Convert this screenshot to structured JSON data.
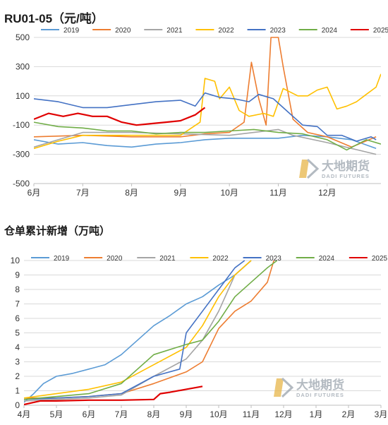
{
  "watermark": {
    "name": "大地期货",
    "sub": "DADI FUTURES"
  },
  "chart_data": [
    {
      "type": "line",
      "title": "RU01-05（元/吨）",
      "xlabel": "",
      "ylabel": "",
      "categories": [
        "6月",
        "7月",
        "8月",
        "9月",
        "10月",
        "11月",
        "12月"
      ],
      "x_range": [
        0,
        7.1
      ],
      "ylim": [
        -500,
        500
      ],
      "yticks": [
        500,
        300,
        100,
        -100,
        -300,
        -500
      ],
      "grid": "horizontal",
      "legend": "top",
      "series": [
        {
          "name": "2019",
          "color": "#5b9bd5",
          "points": [
            [
              0,
              -200
            ],
            [
              0.5,
              -230
            ],
            [
              1,
              -220
            ],
            [
              1.5,
              -240
            ],
            [
              2,
              -250
            ],
            [
              2.5,
              -230
            ],
            [
              3,
              -220
            ],
            [
              3.5,
              -200
            ],
            [
              4,
              -190
            ],
            [
              4.5,
              -190
            ],
            [
              5,
              -190
            ],
            [
              5.5,
              -170
            ],
            [
              6,
              -180
            ],
            [
              6.5,
              -200
            ],
            [
              7,
              -260
            ]
          ]
        },
        {
          "name": "2020",
          "color": "#ed7d31",
          "points": [
            [
              0,
              -180
            ],
            [
              1,
              -170
            ],
            [
              2,
              -180
            ],
            [
              3,
              -180
            ],
            [
              3.5,
              -160
            ],
            [
              4,
              -150
            ],
            [
              4.3,
              -80
            ],
            [
              4.45,
              330
            ],
            [
              4.6,
              80
            ],
            [
              4.75,
              -100
            ],
            [
              4.85,
              500
            ],
            [
              5.0,
              500
            ],
            [
              5.1,
              300
            ],
            [
              5.3,
              -60
            ],
            [
              5.6,
              -150
            ],
            [
              6,
              -180
            ],
            [
              6.5,
              -250
            ],
            [
              7,
              -180
            ]
          ]
        },
        {
          "name": "2021",
          "color": "#a5a5a5",
          "points": [
            [
              0,
              -250
            ],
            [
              0.5,
              -200
            ],
            [
              1,
              -150
            ],
            [
              2,
              -150
            ],
            [
              3,
              -160
            ],
            [
              4,
              -170
            ],
            [
              4.5,
              -150
            ],
            [
              5,
              -130
            ],
            [
              5.3,
              -170
            ],
            [
              6,
              -220
            ],
            [
              6.5,
              -260
            ],
            [
              7,
              -300
            ]
          ]
        },
        {
          "name": "2022",
          "color": "#ffc000",
          "points": [
            [
              0,
              -260
            ],
            [
              0.5,
              -210
            ],
            [
              1,
              -170
            ],
            [
              2,
              -170
            ],
            [
              3,
              -170
            ],
            [
              3.4,
              -80
            ],
            [
              3.5,
              220
            ],
            [
              3.7,
              200
            ],
            [
              3.8,
              80
            ],
            [
              4,
              160
            ],
            [
              4.2,
              0
            ],
            [
              4.4,
              -40
            ],
            [
              4.7,
              -20
            ],
            [
              4.9,
              -40
            ],
            [
              5.1,
              150
            ],
            [
              5.4,
              100
            ],
            [
              5.6,
              100
            ],
            [
              5.8,
              140
            ],
            [
              6,
              160
            ],
            [
              6.2,
              10
            ],
            [
              6.4,
              30
            ],
            [
              6.6,
              60
            ],
            [
              6.8,
              110
            ],
            [
              7,
              160
            ],
            [
              7.1,
              250
            ]
          ]
        },
        {
          "name": "2023",
          "color": "#4472c4",
          "points": [
            [
              0,
              80
            ],
            [
              0.5,
              60
            ],
            [
              1,
              20
            ],
            [
              1.5,
              20
            ],
            [
              2,
              40
            ],
            [
              2.5,
              60
            ],
            [
              3,
              70
            ],
            [
              3.3,
              30
            ],
            [
              3.5,
              120
            ],
            [
              3.8,
              90
            ],
            [
              4.1,
              80
            ],
            [
              4.4,
              60
            ],
            [
              4.6,
              110
            ],
            [
              4.9,
              80
            ],
            [
              5.2,
              -10
            ],
            [
              5.5,
              -100
            ],
            [
              5.8,
              -110
            ],
            [
              6,
              -170
            ],
            [
              6.3,
              -170
            ],
            [
              6.6,
              -210
            ],
            [
              6.9,
              -180
            ],
            [
              7,
              -200
            ]
          ]
        },
        {
          "name": "2024",
          "color": "#70ad47",
          "points": [
            [
              0,
              -80
            ],
            [
              0.5,
              -110
            ],
            [
              1,
              -120
            ],
            [
              1.5,
              -140
            ],
            [
              2,
              -140
            ],
            [
              2.5,
              -160
            ],
            [
              3,
              -150
            ],
            [
              3.5,
              -150
            ],
            [
              4,
              -140
            ],
            [
              4.5,
              -130
            ],
            [
              5,
              -150
            ],
            [
              5.5,
              -160
            ],
            [
              6,
              -200
            ],
            [
              6.4,
              -270
            ],
            [
              6.8,
              -200
            ],
            [
              7.1,
              -230
            ]
          ]
        },
        {
          "name": "2025",
          "color": "#e00000",
          "points": [
            [
              0,
              -60
            ],
            [
              0.3,
              -20
            ],
            [
              0.6,
              -40
            ],
            [
              0.9,
              -20
            ],
            [
              1.2,
              -40
            ],
            [
              1.5,
              -40
            ],
            [
              1.8,
              -80
            ],
            [
              2.1,
              -100
            ],
            [
              2.4,
              -90
            ],
            [
              2.7,
              -80
            ],
            [
              3.0,
              -70
            ],
            [
              3.3,
              -30
            ],
            [
              3.5,
              20
            ]
          ]
        }
      ]
    },
    {
      "type": "line",
      "title": "仓单累计新增（万吨）",
      "xlabel": "",
      "ylabel": "",
      "categories": [
        "4月",
        "5月",
        "6月",
        "7月",
        "8月",
        "9月",
        "10月",
        "11月",
        "12月",
        "1月",
        "2月",
        "3月"
      ],
      "x_range": [
        0,
        11
      ],
      "ylim": [
        0,
        10
      ],
      "yticks": [
        0,
        1,
        2,
        3,
        4,
        5,
        6,
        7,
        8,
        9,
        10
      ],
      "grid": "horizontal",
      "legend": "top",
      "series": [
        {
          "name": "2019",
          "color": "#5b9bd5",
          "points": [
            [
              0,
              0.2
            ],
            [
              0.3,
              0.8
            ],
            [
              0.6,
              1.5
            ],
            [
              1,
              2
            ],
            [
              1.5,
              2.2
            ],
            [
              2,
              2.5
            ],
            [
              2.5,
              2.8
            ],
            [
              3,
              3.5
            ],
            [
              3.5,
              4.5
            ],
            [
              4,
              5.5
            ],
            [
              4.5,
              6.2
            ],
            [
              5,
              7
            ],
            [
              5.5,
              7.5
            ],
            [
              6,
              8.3
            ],
            [
              6.5,
              9
            ],
            [
              7,
              10
            ]
          ]
        },
        {
          "name": "2020",
          "color": "#ed7d31",
          "points": [
            [
              0,
              0.5
            ],
            [
              1,
              0.5
            ],
            [
              2,
              0.6
            ],
            [
              3,
              0.8
            ],
            [
              4,
              1.5
            ],
            [
              5,
              2.3
            ],
            [
              5.5,
              3
            ],
            [
              6,
              5.3
            ],
            [
              6.5,
              6.5
            ],
            [
              7,
              7.2
            ],
            [
              7.5,
              8.5
            ],
            [
              7.7,
              10
            ]
          ]
        },
        {
          "name": "2021",
          "color": "#a5a5a5",
          "points": [
            [
              0,
              0.3
            ],
            [
              1,
              0.4
            ],
            [
              2,
              0.5
            ],
            [
              3,
              0.7
            ],
            [
              4,
              2
            ],
            [
              5,
              3.2
            ],
            [
              5.5,
              4.5
            ],
            [
              6,
              6.5
            ],
            [
              6.5,
              9
            ],
            [
              7,
              10
            ]
          ]
        },
        {
          "name": "2022",
          "color": "#ffc000",
          "points": [
            [
              0,
              0.5
            ],
            [
              1,
              0.8
            ],
            [
              2,
              1.1
            ],
            [
              3,
              1.6
            ],
            [
              4,
              2.8
            ],
            [
              5,
              4
            ],
            [
              5.5,
              5.5
            ],
            [
              6,
              7.5
            ],
            [
              6.5,
              9
            ],
            [
              7,
              10
            ]
          ]
        },
        {
          "name": "2023",
          "color": "#4472c4",
          "points": [
            [
              0,
              0.4
            ],
            [
              1,
              0.5
            ],
            [
              2,
              0.6
            ],
            [
              3,
              0.8
            ],
            [
              4,
              2
            ],
            [
              4.8,
              2.5
            ],
            [
              5,
              5
            ],
            [
              5.5,
              6.5
            ],
            [
              6,
              8
            ],
            [
              6.5,
              9.5
            ],
            [
              6.8,
              10
            ]
          ]
        },
        {
          "name": "2024",
          "color": "#70ad47",
          "points": [
            [
              0,
              0.4
            ],
            [
              1,
              0.6
            ],
            [
              2,
              0.8
            ],
            [
              3,
              1.5
            ],
            [
              4,
              3.5
            ],
            [
              5,
              4.2
            ],
            [
              5.5,
              4.5
            ],
            [
              6,
              5.8
            ],
            [
              6.5,
              7.5
            ],
            [
              7,
              8.5
            ],
            [
              7.5,
              9.5
            ],
            [
              7.8,
              10
            ]
          ]
        },
        {
          "name": "2025",
          "color": "#e00000",
          "points": [
            [
              0,
              0.05
            ],
            [
              0.5,
              0.3
            ],
            [
              1,
              0.3
            ],
            [
              2,
              0.35
            ],
            [
              3,
              0.35
            ],
            [
              4,
              0.4
            ],
            [
              4.2,
              0.8
            ],
            [
              4.5,
              0.9
            ],
            [
              5,
              1.1
            ],
            [
              5.5,
              1.3
            ]
          ]
        }
      ]
    }
  ]
}
